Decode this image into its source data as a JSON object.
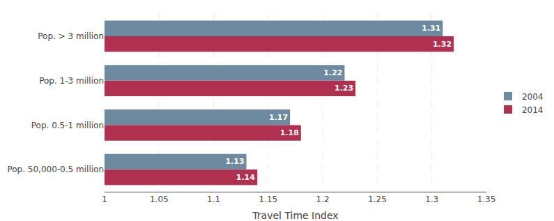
{
  "chart_data": {
    "type": "bar",
    "orientation": "horizontal",
    "categories": [
      "Pop. > 3 million",
      "Pop. 1-3 million",
      "Pop. 0.5-1 million",
      "Pop. 50,000-0.5 million"
    ],
    "series": [
      {
        "name": "2004",
        "color": "#6d8aa0",
        "values": [
          1.31,
          1.22,
          1.17,
          1.13
        ]
      },
      {
        "name": "2014",
        "color": "#b03050",
        "values": [
          1.32,
          1.23,
          1.18,
          1.14
        ]
      }
    ],
    "xlabel": "Travel Time Index",
    "xlim": [
      1.0,
      1.35
    ],
    "xticks": [
      1.0,
      1.05,
      1.1,
      1.15,
      1.2,
      1.25,
      1.3,
      1.35
    ],
    "grid": true,
    "legend": "right",
    "data_labels": true
  }
}
